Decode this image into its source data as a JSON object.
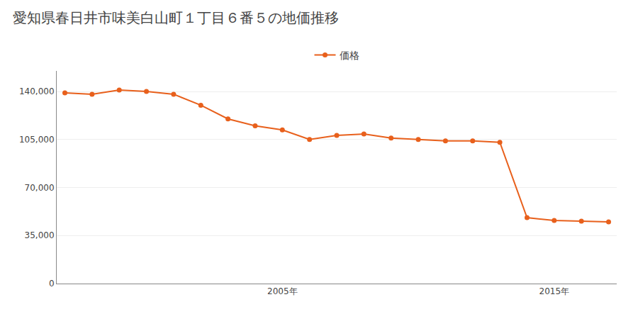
{
  "chart_data": {
    "type": "line",
    "title": "愛知県春日井市味美白山町１丁目６番５の地価推移",
    "x": [
      1997,
      1998,
      1999,
      2000,
      2001,
      2002,
      2003,
      2004,
      2005,
      2006,
      2007,
      2008,
      2009,
      2010,
      2011,
      2012,
      2013,
      2014,
      2015,
      2016,
      2017
    ],
    "series": [
      {
        "name": "価格",
        "color": "#e8601c",
        "values": [
          139000,
          138000,
          141000,
          140000,
          138000,
          130000,
          120000,
          115000,
          112000,
          105000,
          108000,
          109000,
          106000,
          105000,
          104000,
          104000,
          103000,
          48000,
          46000,
          45500,
          45000
        ]
      }
    ],
    "marker": "circle",
    "xlim": [
      1996.7,
      2017.3
    ],
    "xticks": [
      {
        "value": 2005,
        "label": "2005年"
      },
      {
        "value": 2015,
        "label": "2015年"
      }
    ],
    "ylim": [
      0,
      155000
    ],
    "yticks": [
      0,
      {
        "value": 35000,
        "label": "35,000"
      },
      {
        "value": 70000,
        "label": "70,000"
      },
      {
        "value": 105000,
        "label": "105,000"
      },
      {
        "value": 140000,
        "label": "140,000"
      }
    ],
    "grid": "y",
    "legend": "top"
  }
}
